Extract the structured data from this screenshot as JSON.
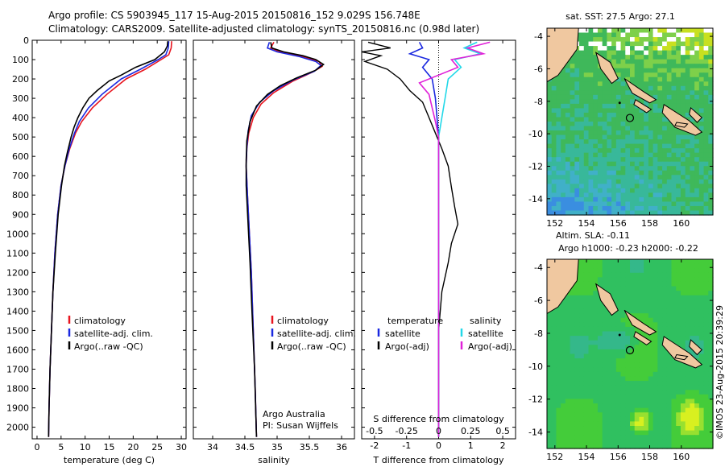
{
  "header": {
    "line1": "Argo profile: CS 5903945_117 15-Aug-2015 20150816_152 9.029S 156.748E",
    "line2": "Climatology: CARS2009. Satellite-adjusted climatology: synTS_20150816.nc (0.98d later)"
  },
  "colors": {
    "climatology": "#e8141e",
    "satellite": "#1a28e0",
    "argo": "#000000",
    "sal_satellite": "#22d8e8",
    "sal_argo": "#e020d8"
  },
  "chart_data": [
    {
      "type": "line",
      "id": "temperature",
      "xlabel": "temperature (deg C)",
      "ylabel": "",
      "xlim": [
        -1,
        31
      ],
      "ylim": [
        2060,
        0
      ],
      "xticks": [
        0,
        5,
        10,
        15,
        20,
        25,
        30
      ],
      "yticks": [
        0,
        100,
        200,
        300,
        400,
        500,
        600,
        700,
        800,
        900,
        1000,
        1100,
        1200,
        1300,
        1400,
        1500,
        1600,
        1700,
        1800,
        1900,
        2000
      ],
      "legend": [
        "climatology",
        "satellite-adj. clim.",
        "Argo(..raw -QC)"
      ],
      "series": [
        {
          "name": "climatology",
          "points": [
            [
              28,
              5
            ],
            [
              27.9,
              40
            ],
            [
              27.4,
              75
            ],
            [
              25.8,
              100
            ],
            [
              22.5,
              150
            ],
            [
              18.5,
              200
            ],
            [
              14.5,
              280
            ],
            [
              11.5,
              350
            ],
            [
              9.3,
              420
            ],
            [
              8,
              480
            ],
            [
              6.8,
              560
            ],
            [
              5.8,
              650
            ],
            [
              5,
              750
            ],
            [
              4.3,
              900
            ],
            [
              3.7,
              1100
            ],
            [
              3.3,
              1300
            ],
            [
              3,
              1500
            ],
            [
              2.7,
              1700
            ],
            [
              2.5,
              1900
            ],
            [
              2.4,
              2050
            ]
          ]
        },
        {
          "name": "satellite-adj. clim.",
          "points": [
            [
              27.4,
              5
            ],
            [
              27.3,
              40
            ],
            [
              26.8,
              75
            ],
            [
              25.2,
              100
            ],
            [
              21.5,
              150
            ],
            [
              17.5,
              200
            ],
            [
              13.5,
              280
            ],
            [
              10.7,
              350
            ],
            [
              8.8,
              420
            ],
            [
              7.8,
              480
            ],
            [
              6.7,
              560
            ],
            [
              5.8,
              650
            ],
            [
              5,
              750
            ],
            [
              4.3,
              900
            ],
            [
              3.7,
              1100
            ],
            [
              3.3,
              1300
            ],
            [
              3,
              1500
            ],
            [
              2.7,
              1700
            ],
            [
              2.5,
              1900
            ],
            [
              2.4,
              2050
            ]
          ]
        },
        {
          "name": "Argo(..raw -QC)",
          "points": [
            [
              27.2,
              5
            ],
            [
              27.1,
              30
            ],
            [
              26.5,
              60
            ],
            [
              24.5,
              100
            ],
            [
              20.5,
              140
            ],
            [
              17.5,
              180
            ],
            [
              15,
              210
            ],
            [
              12.5,
              260
            ],
            [
              10.8,
              300
            ],
            [
              9.5,
              350
            ],
            [
              8.5,
              400
            ],
            [
              7.7,
              450
            ],
            [
              7.1,
              500
            ],
            [
              6.3,
              580
            ],
            [
              5.7,
              650
            ],
            [
              5.1,
              750
            ],
            [
              4.4,
              900
            ],
            [
              3.8,
              1100
            ],
            [
              3.3,
              1300
            ],
            [
              3,
              1500
            ],
            [
              2.7,
              1700
            ],
            [
              2.5,
              1900
            ],
            [
              2.4,
              2050
            ]
          ]
        }
      ]
    },
    {
      "type": "line",
      "id": "salinity",
      "xlabel": "salinity",
      "ylabel": "",
      "xlim": [
        33.7,
        36.2
      ],
      "ylim": [
        2060,
        0
      ],
      "xticks": [
        34,
        34.5,
        35,
        35.5,
        36
      ],
      "xticklabels": [
        "34",
        "34.5",
        "35",
        "35.5",
        "36"
      ],
      "legend": [
        "climatology",
        "satellite-adj. clim.",
        "Argo(..raw -QC)"
      ],
      "annotation": [
        "Argo Australia",
        "PI: Susan Wijffels"
      ],
      "series": [
        {
          "name": "climatology",
          "points": [
            [
              34.95,
              10
            ],
            [
              34.9,
              40
            ],
            [
              35.05,
              60
            ],
            [
              35.4,
              85
            ],
            [
              35.65,
              110
            ],
            [
              35.7,
              135
            ],
            [
              35.55,
              165
            ],
            [
              35.25,
              210
            ],
            [
              34.95,
              270
            ],
            [
              34.75,
              330
            ],
            [
              34.63,
              400
            ],
            [
              34.56,
              480
            ],
            [
              34.53,
              560
            ],
            [
              34.52,
              650
            ],
            [
              34.54,
              800
            ],
            [
              34.57,
              1000
            ],
            [
              34.6,
              1200
            ],
            [
              34.63,
              1500
            ],
            [
              34.66,
              1800
            ],
            [
              34.68,
              2050
            ]
          ]
        },
        {
          "name": "satellite-adj. clim.",
          "points": [
            [
              34.88,
              10
            ],
            [
              34.85,
              40
            ],
            [
              35.0,
              60
            ],
            [
              35.35,
              85
            ],
            [
              35.6,
              110
            ],
            [
              35.68,
              130
            ],
            [
              35.58,
              160
            ],
            [
              35.25,
              205
            ],
            [
              34.95,
              260
            ],
            [
              34.73,
              320
            ],
            [
              34.6,
              390
            ],
            [
              34.55,
              470
            ],
            [
              34.53,
              560
            ],
            [
              34.52,
              650
            ],
            [
              34.54,
              800
            ],
            [
              34.57,
              1000
            ],
            [
              34.6,
              1200
            ],
            [
              34.63,
              1500
            ],
            [
              34.66,
              1800
            ],
            [
              34.68,
              2050
            ]
          ]
        },
        {
          "name": "Argo(..raw -QC)",
          "points": [
            [
              34.9,
              10
            ],
            [
              34.92,
              40
            ],
            [
              35.1,
              60
            ],
            [
              35.4,
              80
            ],
            [
              35.6,
              100
            ],
            [
              35.72,
              125
            ],
            [
              35.6,
              155
            ],
            [
              35.3,
              195
            ],
            [
              35.05,
              235
            ],
            [
              34.85,
              280
            ],
            [
              34.68,
              340
            ],
            [
              34.58,
              420
            ],
            [
              34.53,
              520
            ],
            [
              34.52,
              620
            ],
            [
              34.52,
              750
            ],
            [
              34.55,
              950
            ],
            [
              34.58,
              1150
            ],
            [
              34.61,
              1400
            ],
            [
              34.65,
              1700
            ],
            [
              34.68,
              2050
            ]
          ]
        }
      ]
    },
    {
      "type": "line",
      "id": "difference",
      "xlabel": "T difference from climatology",
      "xlabel2": "S difference from climatology",
      "xlim": [
        -2.4,
        2.4
      ],
      "ylim": [
        2060,
        0
      ],
      "xticks": [
        -2,
        -1,
        0,
        1,
        2
      ],
      "xticks2": [
        -0.5,
        -0.25,
        0,
        0.25,
        0.5
      ],
      "xticklabels2": [
        "-0.5",
        "-0.25",
        "0",
        "0.25",
        "0.5"
      ],
      "legend_titles": [
        "temperature",
        "salinity"
      ],
      "legend": [
        "satellite",
        "Argo(-adj)",
        "satellite",
        "Argo(-adj)"
      ],
      "series": [
        {
          "name": "satellite",
          "quantity": "temperature",
          "points": [
            [
              -0.6,
              10
            ],
            [
              -0.5,
              40
            ],
            [
              -0.9,
              70
            ],
            [
              -0.3,
              100
            ],
            [
              -0.5,
              140
            ],
            [
              -0.2,
              200
            ],
            [
              -0.1,
              300
            ],
            [
              -0.05,
              400
            ],
            [
              0,
              500
            ],
            [
              0,
              700
            ],
            [
              0,
              1000
            ],
            [
              0,
              1500
            ],
            [
              0,
              2050
            ]
          ]
        },
        {
          "name": "Argo(-adj)",
          "quantity": "temperature",
          "points": [
            [
              -2.2,
              10
            ],
            [
              -1.5,
              40
            ],
            [
              -2.4,
              60
            ],
            [
              -1.8,
              80
            ],
            [
              -2.3,
              110
            ],
            [
              -1.6,
              150
            ],
            [
              -1.2,
              200
            ],
            [
              -0.9,
              260
            ],
            [
              -0.5,
              320
            ],
            [
              -0.3,
              400
            ],
            [
              -0.1,
              480
            ],
            [
              0.1,
              560
            ],
            [
              0.3,
              650
            ],
            [
              0.4,
              760
            ],
            [
              0.5,
              860
            ],
            [
              0.6,
              950
            ],
            [
              0.4,
              1050
            ],
            [
              0.3,
              1150
            ],
            [
              0.1,
              1300
            ],
            [
              0,
              1500
            ],
            [
              0,
              2050
            ]
          ]
        },
        {
          "name": "satellite",
          "quantity": "salinity",
          "points": [
            [
              1.2,
              10
            ],
            [
              0.8,
              40
            ],
            [
              1.3,
              70
            ],
            [
              0.5,
              100
            ],
            [
              0.7,
              140
            ],
            [
              0.3,
              200
            ],
            [
              0.2,
              300
            ],
            [
              0.1,
              400
            ],
            [
              0,
              500
            ],
            [
              0,
              700
            ],
            [
              0,
              1000
            ],
            [
              0,
              1500
            ],
            [
              0,
              2050
            ]
          ]
        },
        {
          "name": "Argo(-adj)",
          "quantity": "salinity",
          "points": [
            [
              1.6,
              10
            ],
            [
              0.9,
              40
            ],
            [
              1.4,
              70
            ],
            [
              0.4,
              100
            ],
            [
              0.6,
              140
            ],
            [
              -0.6,
              220
            ],
            [
              -0.3,
              280
            ],
            [
              -0.2,
              350
            ],
            [
              -0.1,
              420
            ],
            [
              0,
              500
            ],
            [
              0,
              600
            ],
            [
              0,
              800
            ],
            [
              0,
              1200
            ],
            [
              0,
              1600
            ],
            [
              0,
              2050
            ]
          ]
        }
      ]
    },
    {
      "type": "heatmap",
      "id": "sst-map",
      "title": "sat. SST: 27.5 Argo: 27.1",
      "xlim": [
        151.5,
        162
      ],
      "ylim": [
        -15,
        -3.5
      ],
      "xticks": [
        152,
        154,
        156,
        158,
        160
      ],
      "yticks": [
        -4,
        -6,
        -8,
        -10,
        -12,
        -14
      ],
      "marker": [
        156.748,
        -9.029
      ]
    },
    {
      "type": "heatmap",
      "id": "sla-map",
      "title": "Altim. SLA: -0.11",
      "subtitle": "Argo h1000: -0.23 h2000: -0.22",
      "xlim": [
        151.5,
        162
      ],
      "ylim": [
        -15,
        -3.5
      ],
      "xticks": [
        152,
        154,
        156,
        158,
        160
      ],
      "yticks": [
        -4,
        -6,
        -8,
        -10,
        -12,
        -14
      ],
      "marker": [
        156.748,
        -9.029
      ]
    }
  ],
  "sidebar_note": "©IMOS 23-Aug-2015 20:39:29"
}
